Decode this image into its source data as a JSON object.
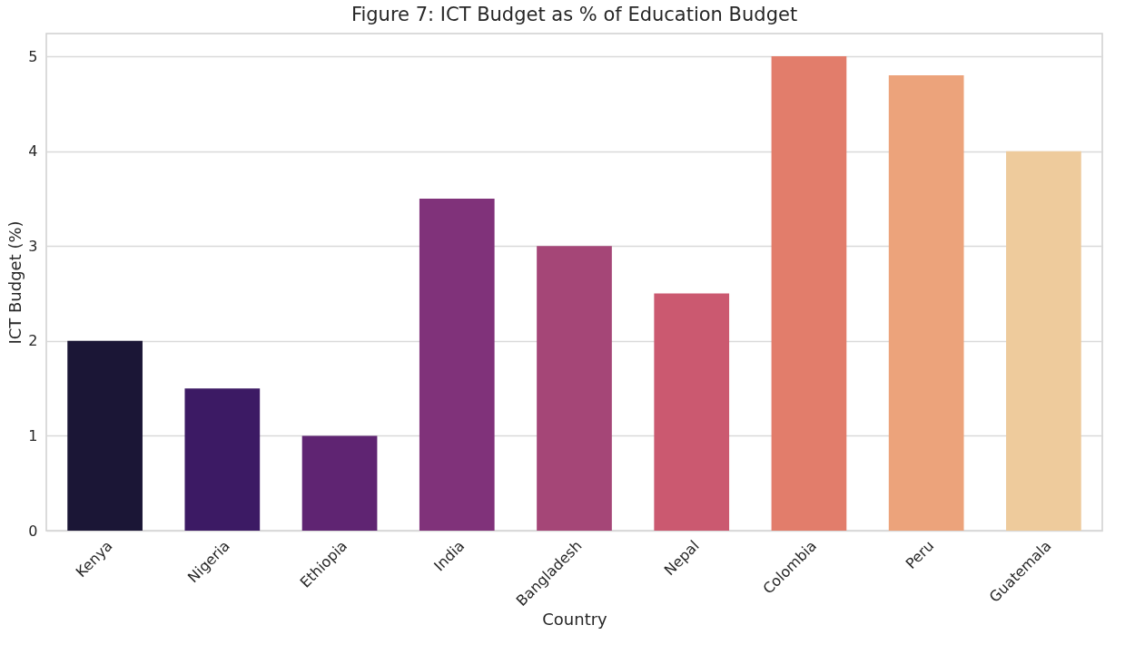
{
  "chart_data": {
    "type": "bar",
    "title": "Figure 7: ICT Budget as % of Education Budget",
    "xlabel": "Country",
    "ylabel": "ICT Budget (%)",
    "categories": [
      "Kenya",
      "Nigeria",
      "Ethiopia",
      "India",
      "Bangladesh",
      "Nepal",
      "Colombia",
      "Peru",
      "Guatemala"
    ],
    "values": [
      2,
      1.5,
      1,
      3.5,
      3,
      2.5,
      5,
      4.8,
      4
    ],
    "colors": [
      "#1b1636",
      "#3c1a64",
      "#5f2472",
      "#80327a",
      "#a54677",
      "#cb5970",
      "#e27d6b",
      "#eca37b",
      "#eecb9c"
    ],
    "ylim": [
      0,
      5.24
    ],
    "yticks": [
      0,
      1,
      2,
      3,
      4,
      5
    ],
    "grid": "y",
    "legend": false
  }
}
